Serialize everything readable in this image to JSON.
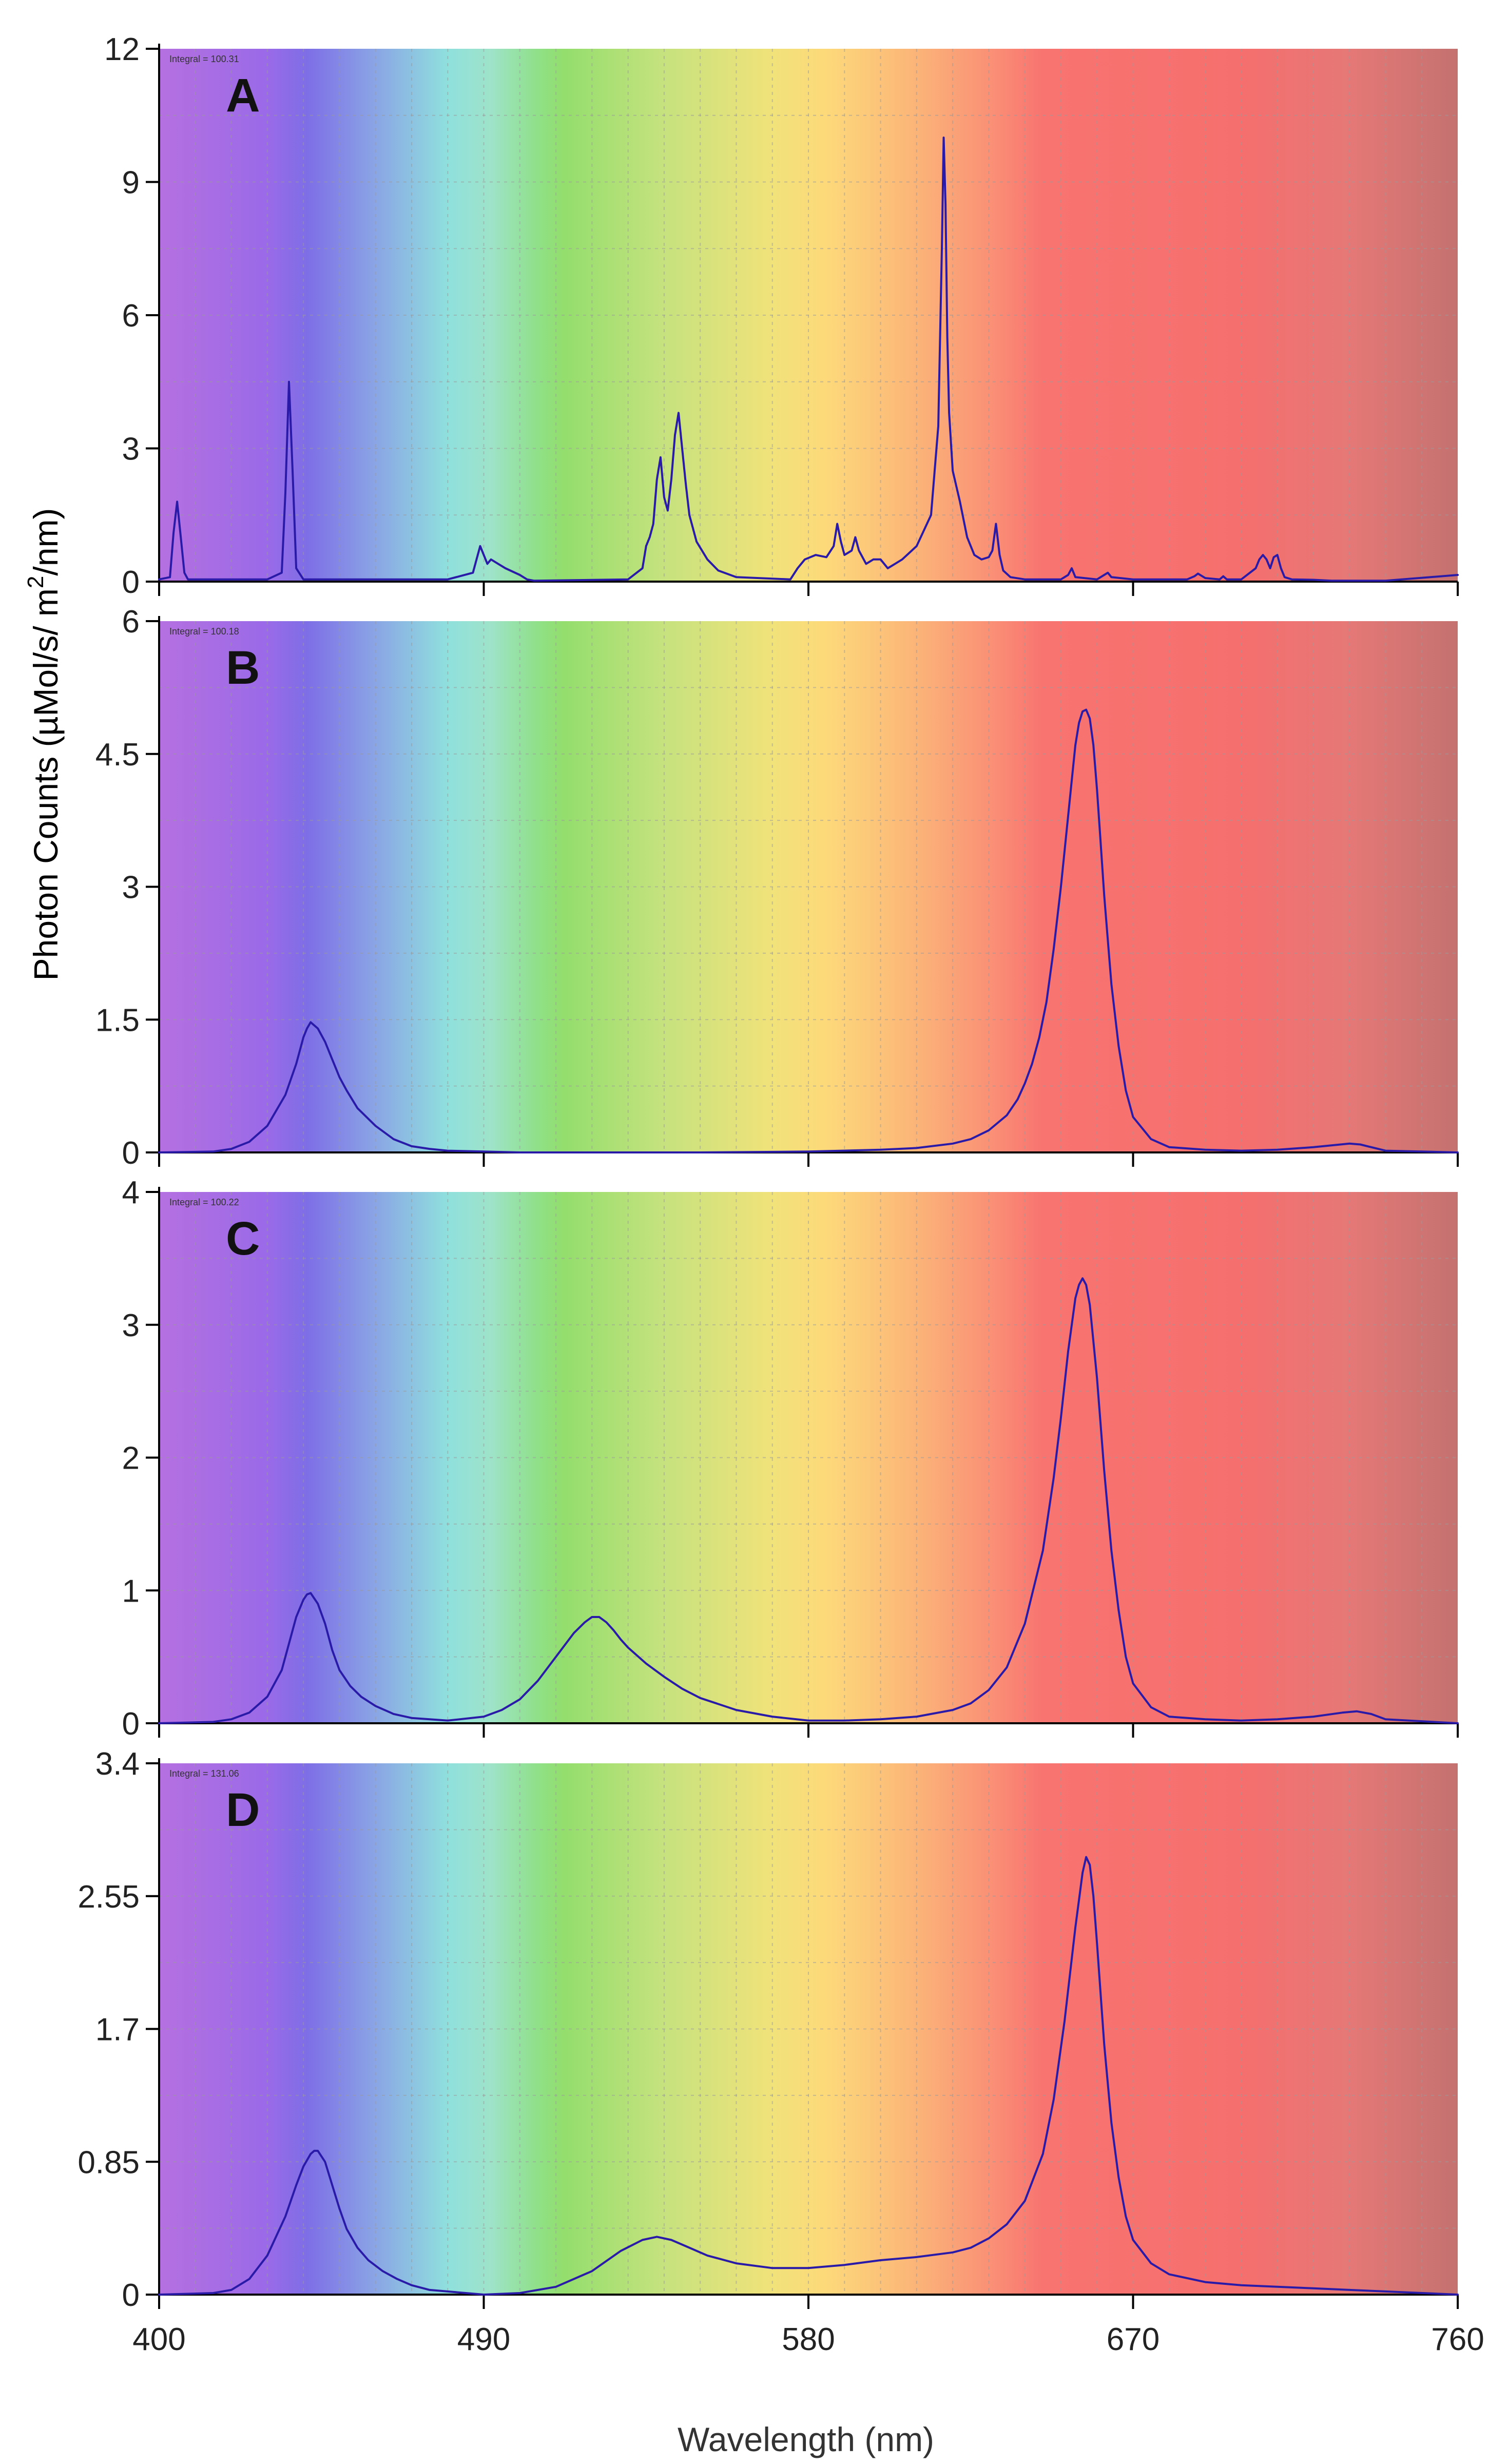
{
  "figure": {
    "ylabel_prefix": "Photon Counts (µMol/s/ m",
    "ylabel_sup": "2",
    "ylabel_suffix": "/nm)",
    "xlabel": "Wavelength (nm)",
    "x_ticks": [
      "400",
      "490",
      "580",
      "670",
      "760"
    ]
  },
  "colors": {
    "line": "#2a1aa8",
    "axis": "#000000",
    "grid": "#9a9a9a",
    "spectrum_stops": [
      {
        "nm": 400,
        "color": "#b570e0"
      },
      {
        "nm": 430,
        "color": "#9a6ae8"
      },
      {
        "nm": 441,
        "color": "#7e6ee6"
      },
      {
        "nm": 460,
        "color": "#8aa5e5"
      },
      {
        "nm": 480,
        "color": "#8fe0dd"
      },
      {
        "nm": 492,
        "color": "#9ee3c9"
      },
      {
        "nm": 505,
        "color": "#8fe088"
      },
      {
        "nm": 512,
        "color": "#93de6d"
      },
      {
        "nm": 540,
        "color": "#c6e27e"
      },
      {
        "nm": 570,
        "color": "#f1e27a"
      },
      {
        "nm": 585,
        "color": "#fdd97a"
      },
      {
        "nm": 610,
        "color": "#fbb478"
      },
      {
        "nm": 630,
        "color": "#fa9176"
      },
      {
        "nm": 645,
        "color": "#f87470"
      },
      {
        "nm": 700,
        "color": "#f56f6e"
      },
      {
        "nm": 730,
        "color": "#e57876"
      },
      {
        "nm": 760,
        "color": "#c47270"
      }
    ]
  },
  "chart_data": [
    {
      "type": "line",
      "panel": "A",
      "label": "A",
      "integral_text": "Integral = 100.31",
      "xlabel": "Wavelength (nm)",
      "ylabel": "Photon Counts (µMol/s/ m2/nm)",
      "xlim": [
        400,
        760
      ],
      "ylim": [
        0,
        12
      ],
      "yticks": [
        0,
        3,
        6,
        9,
        12
      ],
      "ytick_labels": [
        "0",
        "3",
        "6",
        "9",
        "12"
      ],
      "xticks": [
        400,
        490,
        580,
        670,
        760
      ],
      "series": [
        {
          "name": "A",
          "x": [
            400,
            403,
            404,
            405,
            406,
            407,
            408,
            430,
            434,
            435,
            436,
            437,
            438,
            440,
            480,
            487,
            488,
            489,
            490,
            491,
            492,
            494,
            496,
            500,
            502,
            504,
            530,
            534,
            535,
            536,
            537,
            538,
            539,
            540,
            541,
            542,
            543,
            544,
            545,
            546,
            547,
            549,
            552,
            555,
            560,
            575,
            577,
            579,
            582,
            585,
            587,
            588,
            589,
            590,
            592,
            593,
            594,
            596,
            598,
            600,
            602,
            604,
            606,
            610,
            614,
            616,
            617,
            617.5,
            618,
            618.5,
            619,
            620,
            622,
            624,
            626,
            628,
            630,
            631,
            632,
            633,
            634,
            636,
            640,
            650,
            652,
            653,
            654,
            660,
            662,
            663,
            664,
            670,
            685,
            687,
            688,
            690,
            694,
            695,
            696,
            700,
            704,
            705,
            706,
            707,
            708,
            709,
            710,
            711,
            712,
            714,
            720,
            725,
            740,
            760
          ],
          "values": [
            0.05,
            0.1,
            1.1,
            1.8,
            1.0,
            0.2,
            0.05,
            0.05,
            0.2,
            2.0,
            4.5,
            2.5,
            0.3,
            0.05,
            0.05,
            0.2,
            0.5,
            0.8,
            0.6,
            0.4,
            0.5,
            0.4,
            0.3,
            0.15,
            0.05,
            0.02,
            0.05,
            0.3,
            0.8,
            1.0,
            1.3,
            2.3,
            2.8,
            1.9,
            1.6,
            2.3,
            3.3,
            3.8,
            3.0,
            2.2,
            1.5,
            0.9,
            0.5,
            0.25,
            0.1,
            0.05,
            0.3,
            0.5,
            0.6,
            0.55,
            0.8,
            1.3,
            0.9,
            0.6,
            0.7,
            1.0,
            0.7,
            0.4,
            0.5,
            0.5,
            0.3,
            0.4,
            0.5,
            0.8,
            1.5,
            3.5,
            7.5,
            10.0,
            8.5,
            5.5,
            3.8,
            2.5,
            1.8,
            1.0,
            0.6,
            0.5,
            0.55,
            0.7,
            1.3,
            0.6,
            0.25,
            0.1,
            0.05,
            0.05,
            0.15,
            0.3,
            0.1,
            0.05,
            0.15,
            0.2,
            0.1,
            0.05,
            0.05,
            0.12,
            0.18,
            0.08,
            0.05,
            0.12,
            0.05,
            0.05,
            0.3,
            0.5,
            0.6,
            0.5,
            0.3,
            0.55,
            0.6,
            0.3,
            0.1,
            0.05,
            0.04,
            0.02,
            0.02,
            0.15
          ]
        }
      ]
    },
    {
      "type": "line",
      "panel": "B",
      "label": "B",
      "integral_text": "Integral = 100.18",
      "xlabel": "Wavelength (nm)",
      "ylabel": "Photon Counts (µMol/s/ m2/nm)",
      "xlim": [
        400,
        760
      ],
      "ylim": [
        0,
        6
      ],
      "yticks": [
        0,
        1.5,
        3,
        4.5,
        6
      ],
      "ytick_labels": [
        "0",
        "1.5",
        "3",
        "4.5",
        "6"
      ],
      "xticks": [
        400,
        490,
        580,
        670,
        760
      ],
      "series": [
        {
          "name": "B",
          "x": [
            400,
            415,
            420,
            425,
            430,
            435,
            438,
            440,
            441,
            442,
            444,
            446,
            448,
            450,
            452,
            455,
            460,
            465,
            470,
            475,
            480,
            490,
            500,
            520,
            550,
            580,
            600,
            610,
            620,
            625,
            630,
            635,
            638,
            640,
            642,
            644,
            646,
            648,
            650,
            652,
            653,
            654,
            655,
            656,
            657,
            658,
            659,
            660,
            661,
            662,
            664,
            666,
            668,
            670,
            675,
            680,
            690,
            700,
            710,
            720,
            725,
            730,
            733,
            736,
            740,
            760
          ],
          "values": [
            0,
            0.01,
            0.04,
            0.12,
            0.3,
            0.65,
            1.0,
            1.3,
            1.4,
            1.47,
            1.4,
            1.25,
            1.05,
            0.85,
            0.7,
            0.5,
            0.3,
            0.15,
            0.07,
            0.04,
            0.02,
            0.01,
            0,
            0,
            0,
            0.01,
            0.03,
            0.05,
            0.1,
            0.15,
            0.25,
            0.42,
            0.6,
            0.78,
            1.0,
            1.3,
            1.7,
            2.3,
            3.0,
            3.8,
            4.2,
            4.6,
            4.85,
            4.98,
            5.0,
            4.9,
            4.6,
            4.1,
            3.5,
            2.9,
            1.9,
            1.2,
            0.7,
            0.4,
            0.15,
            0.06,
            0.03,
            0.02,
            0.03,
            0.06,
            0.08,
            0.1,
            0.09,
            0.06,
            0.02,
            0
          ]
        }
      ]
    },
    {
      "type": "line",
      "panel": "C",
      "label": "C",
      "integral_text": "Integral = 100.22",
      "xlabel": "Wavelength (nm)",
      "ylabel": "Photon Counts (µMol/s/ m2/nm)",
      "xlim": [
        400,
        760
      ],
      "ylim": [
        0,
        4
      ],
      "yticks": [
        0,
        1,
        2,
        3,
        4
      ],
      "ytick_labels": [
        "0",
        "1",
        "2",
        "3",
        "4"
      ],
      "xticks": [
        400,
        490,
        580,
        670,
        760
      ],
      "series": [
        {
          "name": "C",
          "x": [
            400,
            415,
            420,
            425,
            430,
            434,
            436,
            438,
            440,
            441,
            442,
            444,
            446,
            448,
            450,
            453,
            456,
            460,
            465,
            470,
            480,
            490,
            495,
            500,
            505,
            510,
            515,
            518,
            520,
            522,
            524,
            526,
            528,
            530,
            535,
            540,
            545,
            550,
            560,
            570,
            580,
            590,
            600,
            610,
            620,
            625,
            630,
            635,
            640,
            645,
            648,
            650,
            652,
            654,
            655,
            656,
            657,
            658,
            660,
            662,
            664,
            666,
            668,
            670,
            675,
            680,
            690,
            700,
            710,
            720,
            728,
            732,
            736,
            740,
            760
          ],
          "values": [
            0,
            0.01,
            0.03,
            0.08,
            0.2,
            0.4,
            0.6,
            0.8,
            0.93,
            0.97,
            0.98,
            0.9,
            0.75,
            0.55,
            0.4,
            0.28,
            0.2,
            0.13,
            0.07,
            0.04,
            0.02,
            0.05,
            0.1,
            0.18,
            0.32,
            0.5,
            0.68,
            0.76,
            0.8,
            0.8,
            0.76,
            0.7,
            0.63,
            0.57,
            0.45,
            0.35,
            0.26,
            0.19,
            0.1,
            0.05,
            0.02,
            0.02,
            0.03,
            0.05,
            0.1,
            0.15,
            0.25,
            0.42,
            0.75,
            1.3,
            1.85,
            2.3,
            2.8,
            3.2,
            3.3,
            3.35,
            3.3,
            3.15,
            2.6,
            1.9,
            1.3,
            0.85,
            0.5,
            0.3,
            0.12,
            0.05,
            0.03,
            0.02,
            0.03,
            0.05,
            0.08,
            0.09,
            0.07,
            0.03,
            0
          ]
        }
      ]
    },
    {
      "type": "line",
      "panel": "D",
      "label": "D",
      "integral_text": "Integral = 131.06",
      "xlabel": "Wavelength (nm)",
      "ylabel": "Photon Counts (µMol/s/ m2/nm)",
      "xlim": [
        400,
        760
      ],
      "ylim": [
        0,
        3.4
      ],
      "yticks": [
        0,
        0.85,
        1.7,
        2.55,
        3.4
      ],
      "ytick_labels": [
        "0",
        "0.85",
        "1.7",
        "2.55",
        "3.4"
      ],
      "xticks": [
        400,
        490,
        580,
        670,
        760
      ],
      "series": [
        {
          "name": "D",
          "x": [
            400,
            415,
            420,
            425,
            430,
            435,
            438,
            440,
            442,
            443,
            444,
            446,
            448,
            450,
            452,
            455,
            458,
            462,
            466,
            470,
            475,
            480,
            490,
            500,
            510,
            520,
            528,
            534,
            538,
            542,
            546,
            552,
            560,
            570,
            580,
            590,
            600,
            610,
            620,
            625,
            630,
            635,
            640,
            645,
            648,
            651,
            654,
            656,
            657,
            658,
            659,
            660,
            662,
            664,
            666,
            668,
            670,
            675,
            680,
            690,
            700,
            710,
            720,
            730,
            740,
            760
          ],
          "values": [
            0,
            0.01,
            0.03,
            0.1,
            0.25,
            0.5,
            0.7,
            0.82,
            0.9,
            0.92,
            0.92,
            0.85,
            0.7,
            0.55,
            0.42,
            0.3,
            0.22,
            0.15,
            0.1,
            0.06,
            0.03,
            0.02,
            0,
            0.01,
            0.05,
            0.15,
            0.28,
            0.35,
            0.37,
            0.35,
            0.31,
            0.25,
            0.2,
            0.17,
            0.17,
            0.19,
            0.22,
            0.24,
            0.27,
            0.3,
            0.36,
            0.45,
            0.6,
            0.9,
            1.25,
            1.75,
            2.35,
            2.7,
            2.8,
            2.75,
            2.55,
            2.25,
            1.6,
            1.1,
            0.75,
            0.5,
            0.35,
            0.2,
            0.13,
            0.08,
            0.06,
            0.05,
            0.04,
            0.03,
            0.02,
            0
          ]
        }
      ]
    }
  ]
}
